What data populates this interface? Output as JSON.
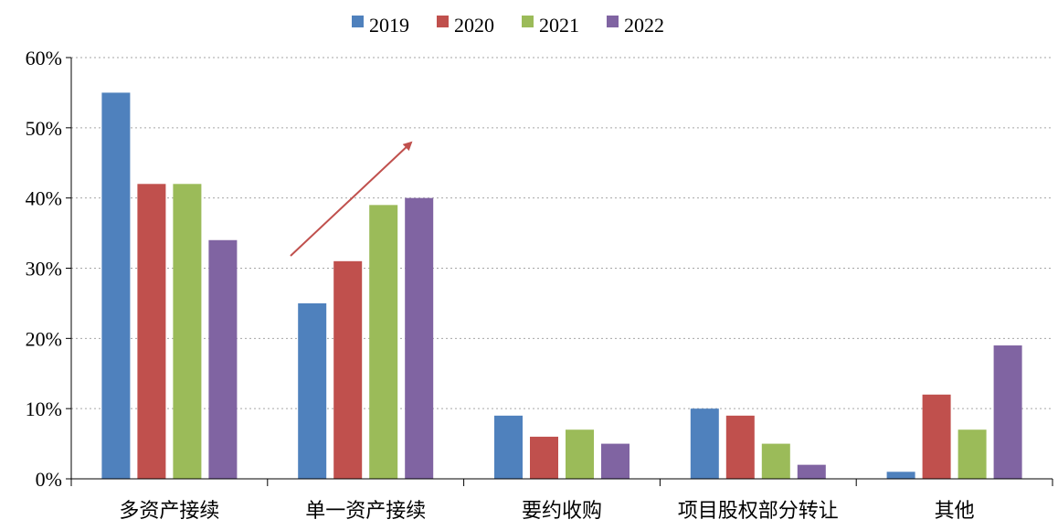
{
  "chart_data": {
    "type": "bar",
    "categories": [
      "多资产接续",
      "单一资产接续",
      "要约收购",
      "项目股权部分转让",
      "其他"
    ],
    "series": [
      {
        "name": "2019",
        "color": "#4F81BD",
        "values": [
          55,
          25,
          9,
          10,
          1
        ]
      },
      {
        "name": "2020",
        "color": "#C0504D",
        "values": [
          42,
          31,
          6,
          9,
          12
        ]
      },
      {
        "name": "2021",
        "color": "#9BBB59",
        "values": [
          42,
          39,
          7,
          5,
          7
        ]
      },
      {
        "name": "2022",
        "color": "#8064A2",
        "values": [
          34,
          40,
          5,
          2,
          19
        ]
      }
    ],
    "ylim": [
      0,
      60
    ],
    "yticks": [
      "0%",
      "10%",
      "20%",
      "30%",
      "40%",
      "50%",
      "60%"
    ],
    "grid": true,
    "legend_position": "top-center",
    "annotation": {
      "type": "arrow",
      "color": "#C0504D",
      "from_category": "单一资产接续"
    }
  }
}
